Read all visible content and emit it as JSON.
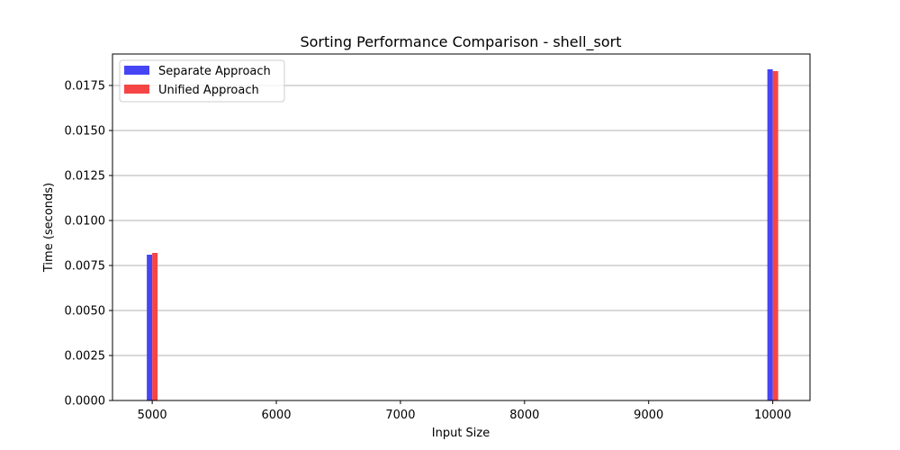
{
  "chart_data": {
    "type": "bar",
    "title": "Sorting Performance Comparison - shell_sort",
    "xlabel": "Input Size",
    "ylabel": "Time (seconds)",
    "x": [
      5000,
      10000
    ],
    "xlim": [
      4680,
      10300
    ],
    "ylim": [
      0,
      0.01925
    ],
    "xticks": [
      5000,
      6000,
      7000,
      8000,
      9000,
      10000
    ],
    "xtick_labels": [
      "5000",
      "6000",
      "7000",
      "8000",
      "9000",
      "10000"
    ],
    "yticks": [
      0,
      0.0025,
      0.005,
      0.0075,
      0.01,
      0.0125,
      0.015,
      0.0175
    ],
    "ytick_labels": [
      "0.0000",
      "0.0025",
      "0.0050",
      "0.0075",
      "0.0100",
      "0.0125",
      "0.0150",
      "0.0175"
    ],
    "grid": "y",
    "legend_position": "top-left",
    "series": [
      {
        "name": "Separate Approach",
        "color": "#4545f5",
        "values": [
          0.0081,
          0.0184
        ]
      },
      {
        "name": "Unified Approach",
        "color": "#f54545",
        "values": [
          0.0082,
          0.0183
        ]
      }
    ]
  }
}
